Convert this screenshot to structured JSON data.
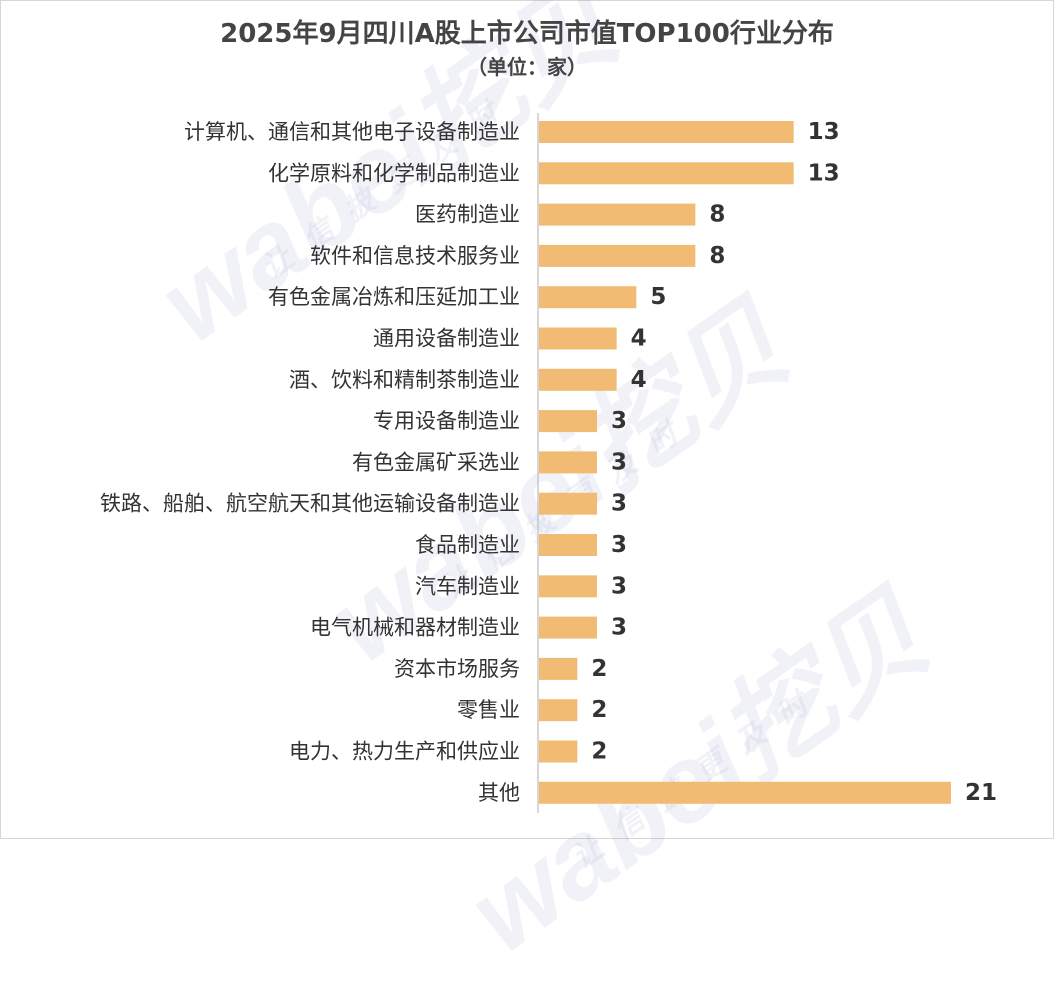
{
  "chart_data": {
    "type": "bar",
    "orientation": "horizontal",
    "title": "2025年9月四川A股上市公司市值TOP100行业分布",
    "subtitle": "（单位：家）",
    "categories": [
      "计算机、通信和其他电子设备制造业",
      "化学原料和化学制品制造业",
      "医药制造业",
      "软件和信息技术服务业",
      "有色金属冶炼和压延加工业",
      "通用设备制造业",
      "酒、饮料和精制茶制造业",
      "专用设备制造业",
      "有色金属矿采选业",
      "铁路、船舶、航空航天和其他运输设备制造业",
      "食品制造业",
      "汽车制造业",
      "电气机械和器材制造业",
      "资本市场服务",
      "零售业",
      "电力、热力生产和供应业",
      "其他"
    ],
    "values": [
      13,
      13,
      8,
      8,
      5,
      4,
      4,
      3,
      3,
      3,
      3,
      3,
      3,
      2,
      2,
      2,
      21
    ],
    "xlim": [
      0,
      21
    ],
    "grid": false,
    "bar_color": "#f2bb73",
    "axis_color": "#c8c8c8",
    "label_color": "#333333"
  },
  "watermark": {
    "brand": "wabei挖贝",
    "slogan": "让信披更及时"
  }
}
